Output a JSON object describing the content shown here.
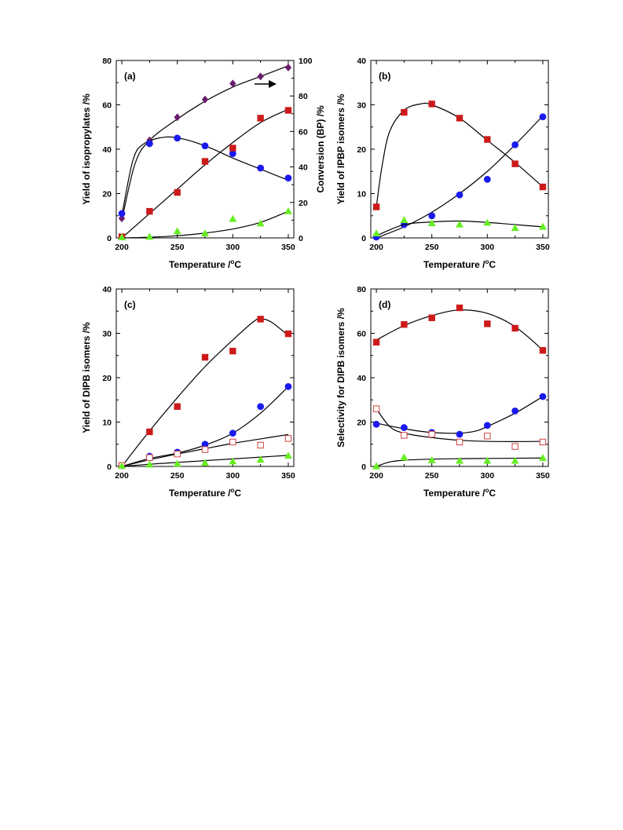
{
  "chart_data": [
    {
      "panel": "(a)",
      "type": "scatter",
      "xlabel": "Temperature /oC",
      "ylabel": "Yield of isopropylates /%",
      "y2label": "Conversion (BP) /%",
      "xlim": [
        195,
        355
      ],
      "ylim": [
        0,
        80
      ],
      "y2lim": [
        0,
        100
      ],
      "xticks": [
        200,
        250,
        300,
        350
      ],
      "yticks": [
        0,
        20,
        40,
        60,
        80
      ],
      "y2ticks": [
        0,
        20,
        40,
        60,
        80,
        100
      ],
      "annotation": "arrow pointing right (conversion on right axis)",
      "series": [
        {
          "marker": "diamond",
          "color": "#6b1e6e",
          "axis": "right",
          "x": [
            200,
            225,
            250,
            275,
            300,
            325,
            350
          ],
          "y": [
            11,
            55,
            68,
            78,
            87,
            91,
            96
          ],
          "fit": [
            [
              200,
              10
            ],
            [
              212,
              42
            ],
            [
              225,
              55
            ],
            [
              250,
              67
            ],
            [
              275,
              77
            ],
            [
              300,
              85
            ],
            [
              325,
              91
            ],
            [
              350,
              97
            ]
          ]
        },
        {
          "marker": "circle",
          "color": "#1a1aee",
          "x": [
            200,
            225,
            250,
            275,
            300,
            325,
            350
          ],
          "y": [
            11,
            42.5,
            45,
            41.5,
            38,
            31.5,
            27
          ],
          "fit": [
            [
              200,
              10
            ],
            [
              210,
              35
            ],
            [
              220,
              42.5
            ],
            [
              240,
              45.5
            ],
            [
              260,
              44
            ],
            [
              280,
              40.5
            ],
            [
              300,
              36
            ],
            [
              325,
              31
            ],
            [
              350,
              26
            ]
          ]
        },
        {
          "marker": "square",
          "color": "#cc1a1a",
          "x": [
            200,
            225,
            250,
            275,
            300,
            325,
            350
          ],
          "y": [
            0.5,
            12,
            20.5,
            34.5,
            40.5,
            54,
            57.5
          ],
          "fit": [
            [
              200,
              0
            ],
            [
              225,
              11
            ],
            [
              250,
              22
            ],
            [
              275,
              33
            ],
            [
              300,
              43
            ],
            [
              325,
              52
            ],
            [
              350,
              58
            ]
          ]
        },
        {
          "marker": "triangle",
          "color": "#66ee22",
          "x": [
            200,
            225,
            250,
            275,
            300,
            325,
            350
          ],
          "y": [
            0.2,
            0.5,
            3,
            2,
            8.5,
            6.5,
            12
          ],
          "fit": [
            [
              200,
              0
            ],
            [
              225,
              0.3
            ],
            [
              250,
              1
            ],
            [
              275,
              2.2
            ],
            [
              300,
              4
            ],
            [
              325,
              7
            ],
            [
              350,
              12
            ]
          ]
        }
      ]
    },
    {
      "panel": "(b)",
      "type": "scatter",
      "xlabel": "Temperature /oC",
      "ylabel": "Yield of IPBP isomers /%",
      "xlim": [
        195,
        355
      ],
      "ylim": [
        0,
        40
      ],
      "xticks": [
        200,
        250,
        300,
        350
      ],
      "yticks": [
        0,
        10,
        20,
        30,
        40
      ],
      "series": [
        {
          "marker": "square",
          "color": "#cc1a1a",
          "x": [
            200,
            225,
            250,
            275,
            300,
            325,
            350
          ],
          "y": [
            7,
            28.3,
            30.2,
            27,
            22.2,
            16.7,
            11.5
          ],
          "fit": [
            [
              200,
              7
            ],
            [
              205,
              16
            ],
            [
              212,
              24
            ],
            [
              225,
              28.8
            ],
            [
              240,
              30.2
            ],
            [
              250,
              30
            ],
            [
              275,
              27
            ],
            [
              300,
              22
            ],
            [
              325,
              17
            ],
            [
              350,
              11.5
            ]
          ]
        },
        {
          "marker": "circle",
          "color": "#1a1aee",
          "x": [
            200,
            225,
            250,
            275,
            300,
            325,
            350
          ],
          "y": [
            0.2,
            3,
            5,
            9.7,
            13.2,
            21,
            27.3
          ],
          "fit": [
            [
              200,
              0
            ],
            [
              225,
              2.5
            ],
            [
              250,
              5.8
            ],
            [
              275,
              10
            ],
            [
              300,
              15
            ],
            [
              325,
              21
            ],
            [
              350,
              27.5
            ]
          ]
        },
        {
          "marker": "triangle",
          "color": "#66ee22",
          "x": [
            200,
            225,
            250,
            275,
            300,
            325,
            350
          ],
          "y": [
            1,
            4,
            3.3,
            3,
            3.4,
            2.2,
            2.5
          ],
          "fit": [
            [
              200,
              0.5
            ],
            [
              225,
              3
            ],
            [
              250,
              3.6
            ],
            [
              275,
              3.8
            ],
            [
              300,
              3.5
            ],
            [
              325,
              3
            ],
            [
              350,
              2.5
            ]
          ]
        }
      ]
    },
    {
      "panel": "(c)",
      "type": "scatter",
      "xlabel": "Temperature /oC",
      "ylabel": "Yield of DIPB isomers /%",
      "xlim": [
        195,
        355
      ],
      "ylim": [
        0,
        40
      ],
      "xticks": [
        200,
        250,
        300,
        350
      ],
      "yticks": [
        0,
        10,
        20,
        30,
        40
      ],
      "series": [
        {
          "marker": "square",
          "color": "#cc1a1a",
          "x": [
            200,
            225,
            250,
            275,
            300,
            325,
            350
          ],
          "y": [
            0.2,
            7.8,
            13.5,
            24.6,
            26,
            33.2,
            29.9
          ],
          "fit": [
            [
              200,
              0
            ],
            [
              225,
              8
            ],
            [
              250,
              15.5
            ],
            [
              275,
              22.5
            ],
            [
              300,
              28.5
            ],
            [
              318,
              32.5
            ],
            [
              325,
              33.3
            ],
            [
              335,
              32.5
            ],
            [
              350,
              29.5
            ]
          ]
        },
        {
          "marker": "circle",
          "color": "#1a1aee",
          "x": [
            200,
            225,
            250,
            275,
            300,
            325,
            350
          ],
          "y": [
            0.2,
            2.3,
            3.2,
            5,
            7.5,
            13.5,
            18
          ],
          "fit": [
            [
              200,
              0
            ],
            [
              225,
              1.8
            ],
            [
              250,
              3
            ],
            [
              275,
              4.8
            ],
            [
              300,
              7.5
            ],
            [
              325,
              12
            ],
            [
              350,
              18
            ]
          ]
        },
        {
          "marker": "square-open",
          "color": "#d04040",
          "x": [
            200,
            225,
            250,
            275,
            300,
            325,
            350
          ],
          "y": [
            0.2,
            2,
            2.8,
            3.8,
            5.5,
            4.8,
            6.3
          ],
          "fit": [
            [
              200,
              0
            ],
            [
              225,
              1.5
            ],
            [
              250,
              2.8
            ],
            [
              275,
              4
            ],
            [
              300,
              5.2
            ],
            [
              325,
              6.2
            ],
            [
              350,
              7.2
            ]
          ]
        },
        {
          "marker": "triangle",
          "color": "#66ee22",
          "x": [
            200,
            225,
            250,
            275,
            300,
            325,
            350
          ],
          "y": [
            0.1,
            0.4,
            0.6,
            0.8,
            1.1,
            1.5,
            2.4
          ],
          "fit": [
            [
              200,
              0
            ],
            [
              225,
              0.5
            ],
            [
              250,
              0.9
            ],
            [
              275,
              1.3
            ],
            [
              300,
              1.7
            ],
            [
              325,
              2.1
            ],
            [
              350,
              2.5
            ]
          ]
        }
      ]
    },
    {
      "panel": "(d)",
      "type": "scatter",
      "xlabel": "Temperature /oC",
      "ylabel": "Selectivity for DIPB isomers /%",
      "xlim": [
        195,
        355
      ],
      "ylim": [
        0,
        80
      ],
      "xticks": [
        200,
        250,
        300,
        350
      ],
      "yticks": [
        0,
        20,
        40,
        60,
        80
      ],
      "series": [
        {
          "marker": "square",
          "color": "#cc1a1a",
          "x": [
            200,
            225,
            250,
            275,
            300,
            325,
            350
          ],
          "y": [
            56,
            64,
            67,
            71.5,
            64.3,
            62.3,
            52.3
          ],
          "fit": [
            [
              200,
              57
            ],
            [
              225,
              63.5
            ],
            [
              250,
              68
            ],
            [
              275,
              70.5
            ],
            [
              300,
              69
            ],
            [
              325,
              63
            ],
            [
              350,
              52.5
            ]
          ]
        },
        {
          "marker": "circle",
          "color": "#1a1aee",
          "x": [
            200,
            225,
            250,
            275,
            300,
            325,
            350
          ],
          "y": [
            19,
            17.5,
            15.3,
            14.5,
            18.5,
            25,
            31.5
          ],
          "fit": [
            [
              200,
              19.5
            ],
            [
              225,
              17
            ],
            [
              250,
              15.3
            ],
            [
              275,
              15
            ],
            [
              290,
              16
            ],
            [
              300,
              18
            ],
            [
              325,
              24
            ],
            [
              350,
              31.5
            ]
          ]
        },
        {
          "marker": "square-open",
          "color": "#d04040",
          "x": [
            200,
            225,
            250,
            275,
            300,
            325,
            350
          ],
          "y": [
            26,
            14,
            14.5,
            11,
            13.7,
            9,
            11
          ],
          "fit": [
            [
              200,
              26
            ],
            [
              212,
              18
            ],
            [
              225,
              15
            ],
            [
              250,
              13
            ],
            [
              275,
              11.8
            ],
            [
              300,
              11.3
            ],
            [
              325,
              11.2
            ],
            [
              350,
              11.3
            ]
          ]
        },
        {
          "marker": "triangle",
          "color": "#66ee22",
          "x": [
            200,
            225,
            250,
            275,
            300,
            325,
            350
          ],
          "y": [
            0,
            4,
            2.8,
            2.5,
            2.5,
            2.5,
            3.8
          ],
          "fit": [
            [
              200,
              0
            ],
            [
              212,
              2
            ],
            [
              225,
              2.8
            ],
            [
              250,
              3.3
            ],
            [
              275,
              3.5
            ],
            [
              300,
              3.6
            ],
            [
              325,
              3.7
            ],
            [
              350,
              3.8
            ]
          ]
        }
      ]
    }
  ]
}
